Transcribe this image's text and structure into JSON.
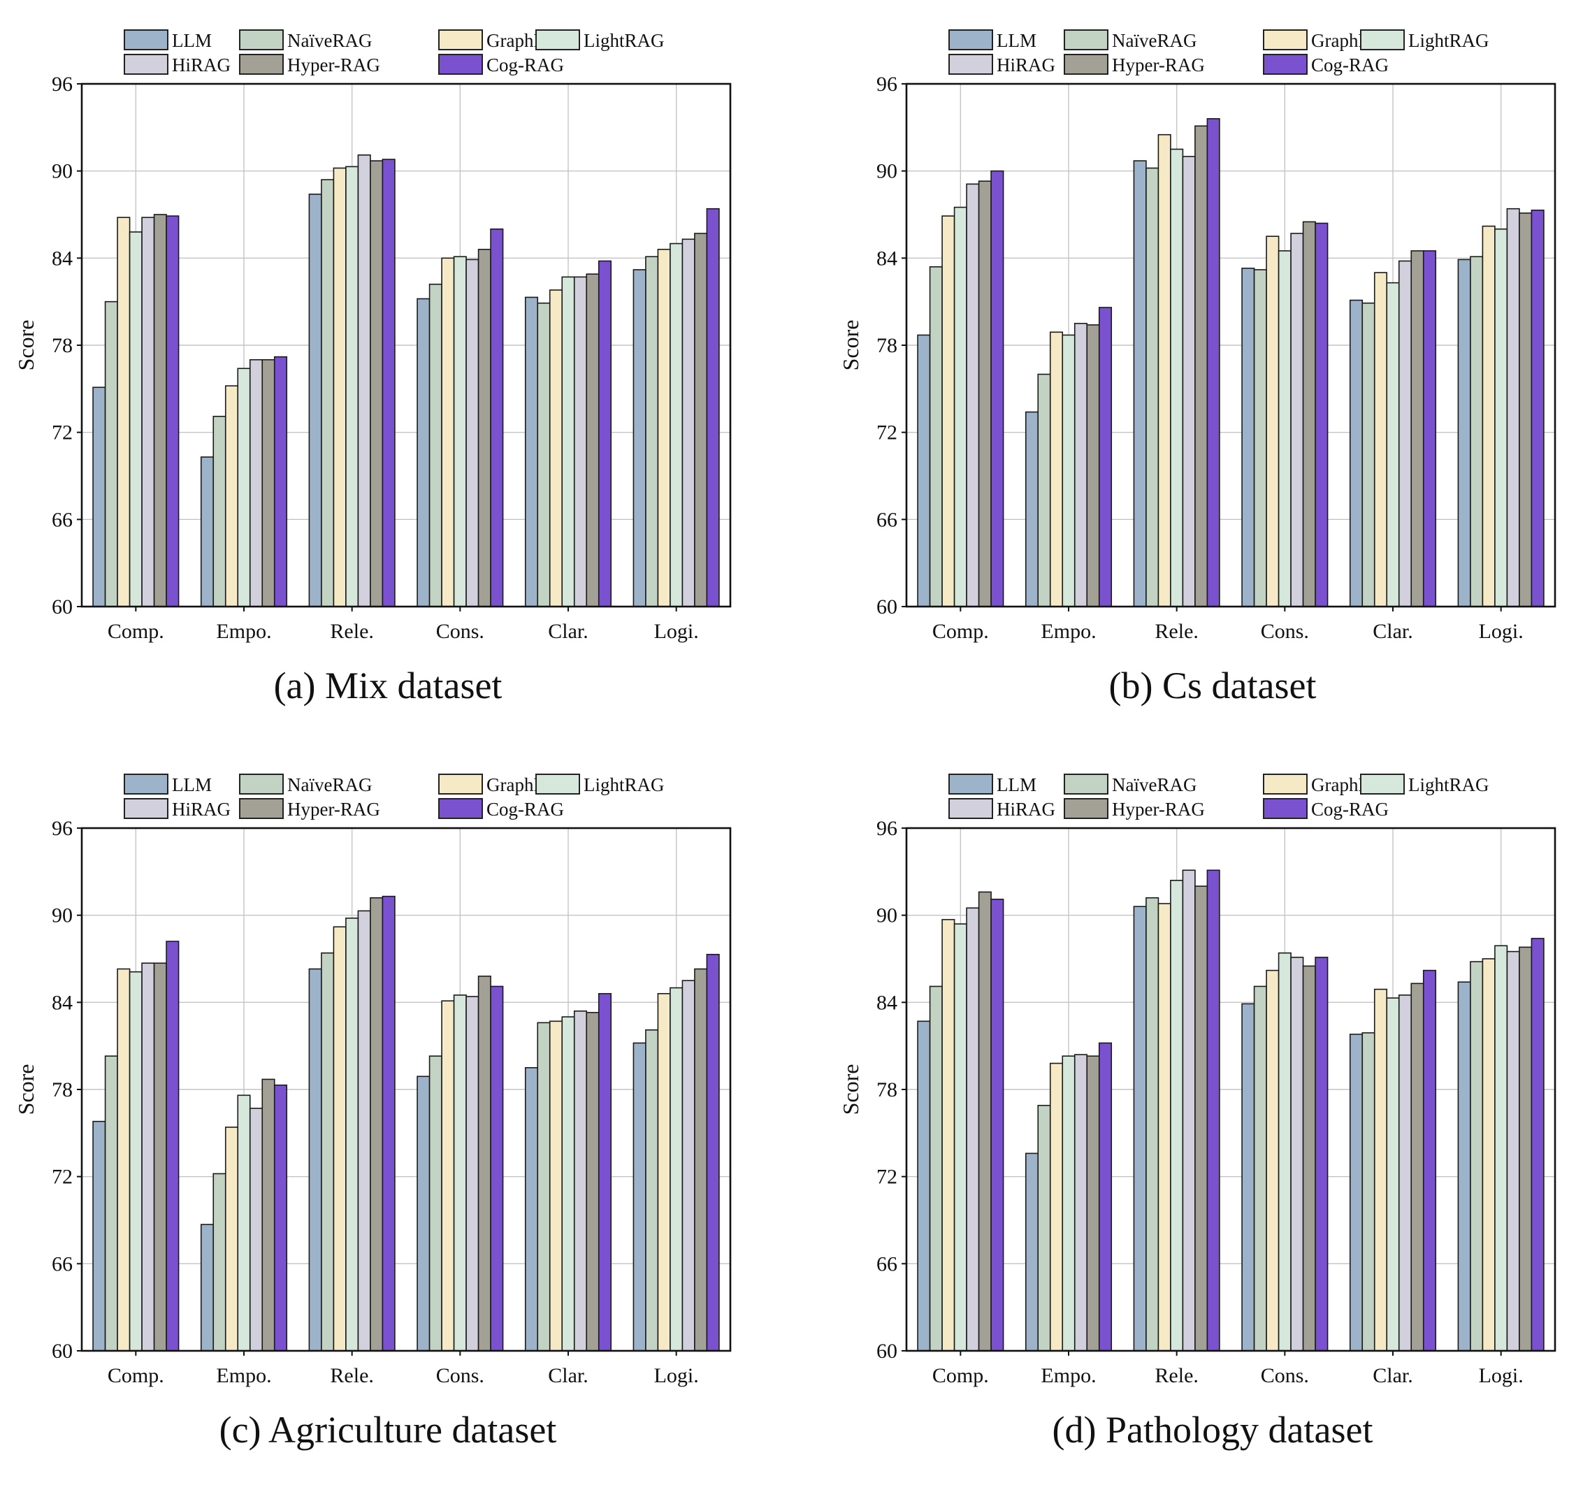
{
  "figure": {
    "series_names": [
      "LLM",
      "NaïveRAG",
      "GraphRAG",
      "LightRAG",
      "HiRAG",
      "Hyper-RAG",
      "Cog-RAG"
    ],
    "series_colors": [
      "#9db3c9",
      "#c3d3c3",
      "#f5e9c6",
      "#d5e8db",
      "#d2d0dc",
      "#a3a195",
      "#7a52cf"
    ]
  },
  "chart_data": [
    {
      "type": "bar",
      "caption": "(a) Mix dataset",
      "ylabel": "Score",
      "ylim": [
        60,
        96
      ],
      "yticks": [
        60,
        66,
        72,
        78,
        84,
        90,
        96
      ],
      "categories": [
        "Comp.",
        "Empo.",
        "Rele.",
        "Cons.",
        "Clar.",
        "Logi."
      ],
      "grid": true,
      "legend_position": "top",
      "series": [
        {
          "name": "LLM",
          "values": [
            75.1,
            70.3,
            88.4,
            81.2,
            81.3,
            83.2
          ]
        },
        {
          "name": "NaïveRAG",
          "values": [
            81.0,
            73.1,
            89.4,
            82.2,
            80.9,
            84.1
          ]
        },
        {
          "name": "GraphRAG",
          "values": [
            86.8,
            75.2,
            90.2,
            84.0,
            81.8,
            84.6
          ]
        },
        {
          "name": "LightRAG",
          "values": [
            85.8,
            76.4,
            90.3,
            84.1,
            82.7,
            85.0
          ]
        },
        {
          "name": "HiRAG",
          "values": [
            86.8,
            77.0,
            91.1,
            83.9,
            82.7,
            85.3
          ]
        },
        {
          "name": "Hyper-RAG",
          "values": [
            87.0,
            77.0,
            90.7,
            84.6,
            82.9,
            85.7
          ]
        },
        {
          "name": "Cog-RAG",
          "values": [
            86.9,
            77.2,
            90.8,
            86.0,
            83.8,
            87.4
          ]
        }
      ]
    },
    {
      "type": "bar",
      "caption": "(b) Cs dataset",
      "ylabel": "Score",
      "ylim": [
        60,
        96
      ],
      "yticks": [
        60,
        66,
        72,
        78,
        84,
        90,
        96
      ],
      "categories": [
        "Comp.",
        "Empo.",
        "Rele.",
        "Cons.",
        "Clar.",
        "Logi."
      ],
      "grid": true,
      "legend_position": "top",
      "series": [
        {
          "name": "LLM",
          "values": [
            78.7,
            73.4,
            90.7,
            83.3,
            81.1,
            83.9
          ]
        },
        {
          "name": "NaïveRAG",
          "values": [
            83.4,
            76.0,
            90.2,
            83.2,
            80.9,
            84.1
          ]
        },
        {
          "name": "GraphRAG",
          "values": [
            86.9,
            78.9,
            92.5,
            85.5,
            83.0,
            86.2
          ]
        },
        {
          "name": "LightRAG",
          "values": [
            87.5,
            78.7,
            91.5,
            84.5,
            82.3,
            86.0
          ]
        },
        {
          "name": "HiRAG",
          "values": [
            89.1,
            79.5,
            91.0,
            85.7,
            83.8,
            87.4
          ]
        },
        {
          "name": "Hyper-RAG",
          "values": [
            89.3,
            79.4,
            93.1,
            86.5,
            84.5,
            87.1
          ]
        },
        {
          "name": "Cog-RAG",
          "values": [
            90.0,
            80.6,
            93.6,
            86.4,
            84.5,
            87.3
          ]
        }
      ]
    },
    {
      "type": "bar",
      "caption": "(c) Agriculture dataset",
      "ylabel": "Score",
      "ylim": [
        60,
        96
      ],
      "yticks": [
        60,
        66,
        72,
        78,
        84,
        90,
        96
      ],
      "categories": [
        "Comp.",
        "Empo.",
        "Rele.",
        "Cons.",
        "Clar.",
        "Logi."
      ],
      "grid": true,
      "legend_position": "top",
      "series": [
        {
          "name": "LLM",
          "values": [
            75.8,
            68.7,
            86.3,
            78.9,
            79.5,
            81.2
          ]
        },
        {
          "name": "NaïveRAG",
          "values": [
            80.3,
            72.2,
            87.4,
            80.3,
            82.6,
            82.1
          ]
        },
        {
          "name": "GraphRAG",
          "values": [
            86.3,
            75.4,
            89.2,
            84.1,
            82.7,
            84.6
          ]
        },
        {
          "name": "LightRAG",
          "values": [
            86.1,
            77.6,
            89.8,
            84.5,
            83.0,
            85.0
          ]
        },
        {
          "name": "HiRAG",
          "values": [
            86.7,
            76.7,
            90.3,
            84.4,
            83.4,
            85.5
          ]
        },
        {
          "name": "Hyper-RAG",
          "values": [
            86.7,
            78.7,
            91.2,
            85.8,
            83.3,
            86.3
          ]
        },
        {
          "name": "Cog-RAG",
          "values": [
            88.2,
            78.3,
            91.3,
            85.1,
            84.6,
            87.3
          ]
        }
      ]
    },
    {
      "type": "bar",
      "caption": "(d) Pathology dataset",
      "ylabel": "Score",
      "ylim": [
        60,
        96
      ],
      "yticks": [
        60,
        66,
        72,
        78,
        84,
        90,
        96
      ],
      "categories": [
        "Comp.",
        "Empo.",
        "Rele.",
        "Cons.",
        "Clar.",
        "Logi."
      ],
      "grid": true,
      "legend_position": "top",
      "series": [
        {
          "name": "LLM",
          "values": [
            82.7,
            73.6,
            90.6,
            83.9,
            81.8,
            85.4
          ]
        },
        {
          "name": "NaïveRAG",
          "values": [
            85.1,
            76.9,
            91.2,
            85.1,
            81.9,
            86.8
          ]
        },
        {
          "name": "GraphRAG",
          "values": [
            89.7,
            79.8,
            90.8,
            86.2,
            84.9,
            87.0
          ]
        },
        {
          "name": "LightRAG",
          "values": [
            89.4,
            80.3,
            92.4,
            87.4,
            84.3,
            87.9
          ]
        },
        {
          "name": "HiRAG",
          "values": [
            90.5,
            80.4,
            93.1,
            87.1,
            84.5,
            87.5
          ]
        },
        {
          "name": "Hyper-RAG",
          "values": [
            91.6,
            80.3,
            92.0,
            86.5,
            85.3,
            87.8
          ]
        },
        {
          "name": "Cog-RAG",
          "values": [
            91.1,
            81.2,
            93.1,
            87.1,
            86.2,
            88.4
          ]
        }
      ]
    }
  ]
}
